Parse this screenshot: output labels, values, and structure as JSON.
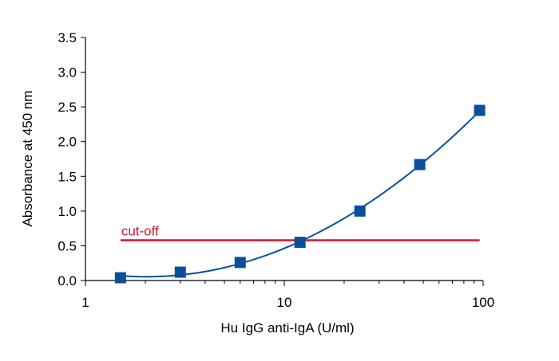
{
  "chart_data": {
    "type": "scatter",
    "xlabel": "Hu IgG anti-IgA (U/ml)",
    "ylabel": "Absorbance at 450 nm",
    "x_scale": "log",
    "xlim": [
      1,
      100
    ],
    "ylim": [
      0,
      3.5
    ],
    "x_ticks": [
      1,
      10,
      100
    ],
    "x_tick_labels": [
      "1",
      "10",
      "100"
    ],
    "y_ticks": [
      0,
      0.5,
      1,
      1.5,
      2,
      2.5,
      3,
      3.5
    ],
    "y_tick_labels": [
      "0.0",
      "0.5",
      "1.0",
      "1.5",
      "2.0",
      "2.5",
      "3.0",
      "3.5"
    ],
    "grid": false,
    "series": [
      {
        "x": [
          1.5,
          3,
          6,
          12,
          24,
          48,
          96
        ],
        "y": [
          0.04,
          0.12,
          0.26,
          0.55,
          1.0,
          1.67,
          2.45
        ],
        "marker": "square",
        "fit_curve": true,
        "color": "#0b4f9c"
      }
    ],
    "cutoff": {
      "label": "cut-off",
      "y": 0.58,
      "x_range": [
        1.5,
        96
      ],
      "color": "#d0142c"
    }
  }
}
